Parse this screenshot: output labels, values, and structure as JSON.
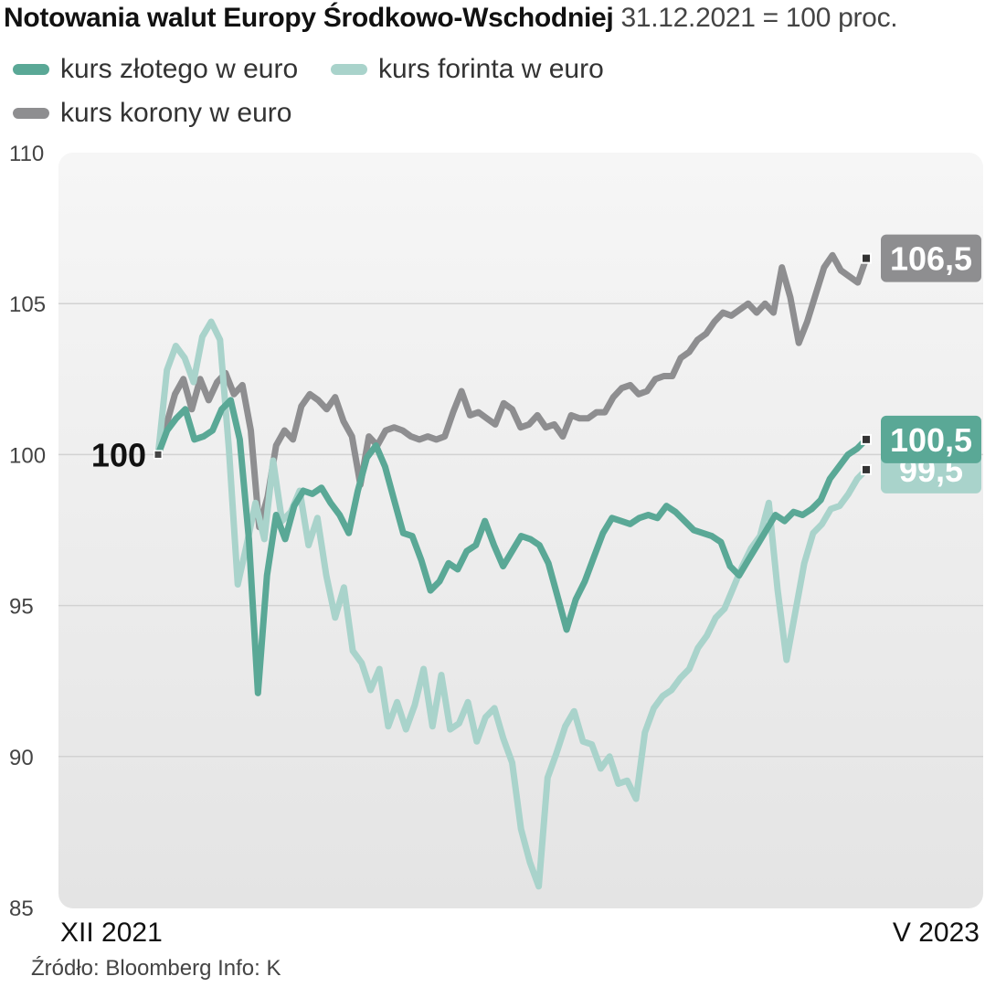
{
  "header": {
    "title_bold": "Notowania walut Europy Środkowo-Wschodniej",
    "title_light": "31.12.2021 = 100 proc."
  },
  "footer": {
    "source": "Źródło: Bloomberg Info: K"
  },
  "colors": {
    "pln": "#5aa896",
    "huf": "#a9d3cb",
    "czk": "#8e8e90",
    "plot_bg_top": "#f6f6f6",
    "plot_bg_bottom": "#e4e4e4"
  },
  "chart_data": {
    "type": "line",
    "title": "Notowania walut Europy Środkowo-Wschodniej",
    "subtitle": "31.12.2021 = 100 proc.",
    "ylim": [
      85,
      110
    ],
    "yticks": [
      "85",
      "90",
      "95",
      "100",
      "105",
      "110"
    ],
    "x_start_label": "XII 2021",
    "x_end_label": "V 2023",
    "baseline_label": "100",
    "legend_placement": "top-left",
    "grid": true,
    "series": [
      {
        "key": "czk",
        "name": "kurs korony w euro",
        "end_label": "106,5",
        "values": [
          100,
          101.0,
          102.0,
          102.5,
          101.5,
          102.5,
          101.8,
          102.4,
          102.7,
          102.0,
          102.3,
          100.8,
          97.6,
          98.6,
          100.3,
          100.8,
          100.5,
          101.6,
          102.0,
          101.8,
          101.5,
          101.9,
          101.1,
          100.6,
          99.0,
          100.6,
          100.3,
          100.8,
          100.9,
          100.8,
          100.6,
          100.5,
          100.6,
          100.5,
          100.6,
          101.4,
          102.1,
          101.3,
          101.4,
          101.2,
          101.0,
          101.7,
          101.5,
          100.9,
          101.0,
          101.3,
          100.9,
          101.0,
          100.6,
          101.3,
          101.2,
          101.2,
          101.4,
          101.4,
          101.9,
          102.2,
          102.3,
          102.0,
          102.1,
          102.5,
          102.6,
          102.6,
          103.2,
          103.4,
          103.8,
          104.0,
          104.4,
          104.7,
          104.6,
          104.8,
          105.0,
          104.7,
          105.0,
          104.7,
          106.2,
          105.2,
          103.7,
          104.4,
          105.3,
          106.2,
          106.6,
          106.1,
          105.9,
          105.7,
          106.5
        ]
      },
      {
        "key": "huf",
        "name": "kurs forinta w euro",
        "end_label": "99,5",
        "values": [
          100,
          102.8,
          103.6,
          103.2,
          102.4,
          103.9,
          104.4,
          103.8,
          100.2,
          95.7,
          97.0,
          98.4,
          97.2,
          99.8,
          97.8,
          98.1,
          98.8,
          97.0,
          97.9,
          96.0,
          94.6,
          95.6,
          93.5,
          93.1,
          92.2,
          92.9,
          91.0,
          91.8,
          90.9,
          91.7,
          92.9,
          91.0,
          92.7,
          90.9,
          91.1,
          91.8,
          90.5,
          91.3,
          91.6,
          90.6,
          89.8,
          87.6,
          86.5,
          85.7,
          89.3,
          90.1,
          91.0,
          91.5,
          90.5,
          90.4,
          89.6,
          90.0,
          89.1,
          89.2,
          88.6,
          90.8,
          91.6,
          92.0,
          92.2,
          92.6,
          92.9,
          93.6,
          94.0,
          94.6,
          94.9,
          95.6,
          96.3,
          96.9,
          97.3,
          98.4,
          95.5,
          93.2,
          94.8,
          96.4,
          97.4,
          97.7,
          98.2,
          98.3,
          98.7,
          99.2,
          99.5
        ]
      },
      {
        "key": "pln",
        "name": "kurs złotego w euro",
        "end_label": "100,5",
        "values": [
          100,
          100.8,
          101.2,
          101.5,
          100.5,
          100.6,
          100.8,
          101.5,
          101.8,
          100.5,
          97.2,
          92.1,
          96.0,
          98.0,
          97.2,
          98.3,
          98.8,
          98.7,
          98.9,
          98.4,
          98.0,
          97.4,
          98.8,
          99.9,
          100.3,
          99.6,
          98.5,
          97.4,
          97.3,
          96.5,
          95.5,
          95.8,
          96.4,
          96.2,
          96.8,
          97.0,
          97.8,
          97.0,
          96.3,
          96.8,
          97.3,
          97.2,
          97.0,
          96.4,
          95.3,
          94.2,
          95.2,
          95.8,
          96.6,
          97.4,
          97.9,
          97.8,
          97.7,
          97.9,
          98.0,
          97.9,
          98.3,
          98.1,
          97.8,
          97.5,
          97.4,
          97.3,
          97.1,
          96.3,
          96.0,
          96.5,
          97.0,
          97.5,
          98.0,
          97.8,
          98.1,
          98.0,
          98.2,
          98.5,
          99.2,
          99.6,
          100.0,
          100.2,
          100.5
        ]
      }
    ]
  }
}
